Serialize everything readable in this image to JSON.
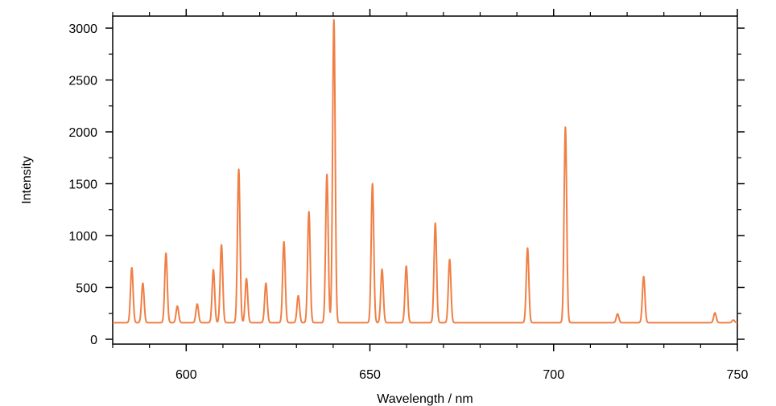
{
  "chart_data": {
    "type": "line",
    "title": "",
    "xlabel": "Wavelength / nm",
    "ylabel": "Intensity",
    "xlim": [
      580,
      750
    ],
    "ylim": [
      0,
      3000
    ],
    "xticks": [
      600,
      650,
      700,
      750
    ],
    "yticks": [
      0,
      500,
      1000,
      1500,
      2000,
      2500,
      3000
    ],
    "grid": false,
    "legend": "none",
    "series": [
      {
        "color": "#f07f45",
        "baseline": 160,
        "peaks": [
          {
            "x": 585.2,
            "y": 690
          },
          {
            "x": 588.2,
            "y": 540
          },
          {
            "x": 594.5,
            "y": 830
          },
          {
            "x": 597.6,
            "y": 320
          },
          {
            "x": 603.0,
            "y": 340
          },
          {
            "x": 607.4,
            "y": 670
          },
          {
            "x": 609.6,
            "y": 910
          },
          {
            "x": 614.3,
            "y": 1640
          },
          {
            "x": 616.4,
            "y": 585
          },
          {
            "x": 621.7,
            "y": 540
          },
          {
            "x": 626.6,
            "y": 940
          },
          {
            "x": 630.5,
            "y": 420
          },
          {
            "x": 633.4,
            "y": 1230
          },
          {
            "x": 638.3,
            "y": 1590
          },
          {
            "x": 640.2,
            "y": 3080
          },
          {
            "x": 650.7,
            "y": 1500
          },
          {
            "x": 653.3,
            "y": 675
          },
          {
            "x": 659.9,
            "y": 705
          },
          {
            "x": 667.8,
            "y": 1120
          },
          {
            "x": 671.7,
            "y": 770
          },
          {
            "x": 692.9,
            "y": 880
          },
          {
            "x": 703.2,
            "y": 2045
          },
          {
            "x": 717.4,
            "y": 245
          },
          {
            "x": 724.5,
            "y": 605
          },
          {
            "x": 743.9,
            "y": 255
          },
          {
            "x": 748.9,
            "y": 185
          }
        ]
      }
    ]
  }
}
